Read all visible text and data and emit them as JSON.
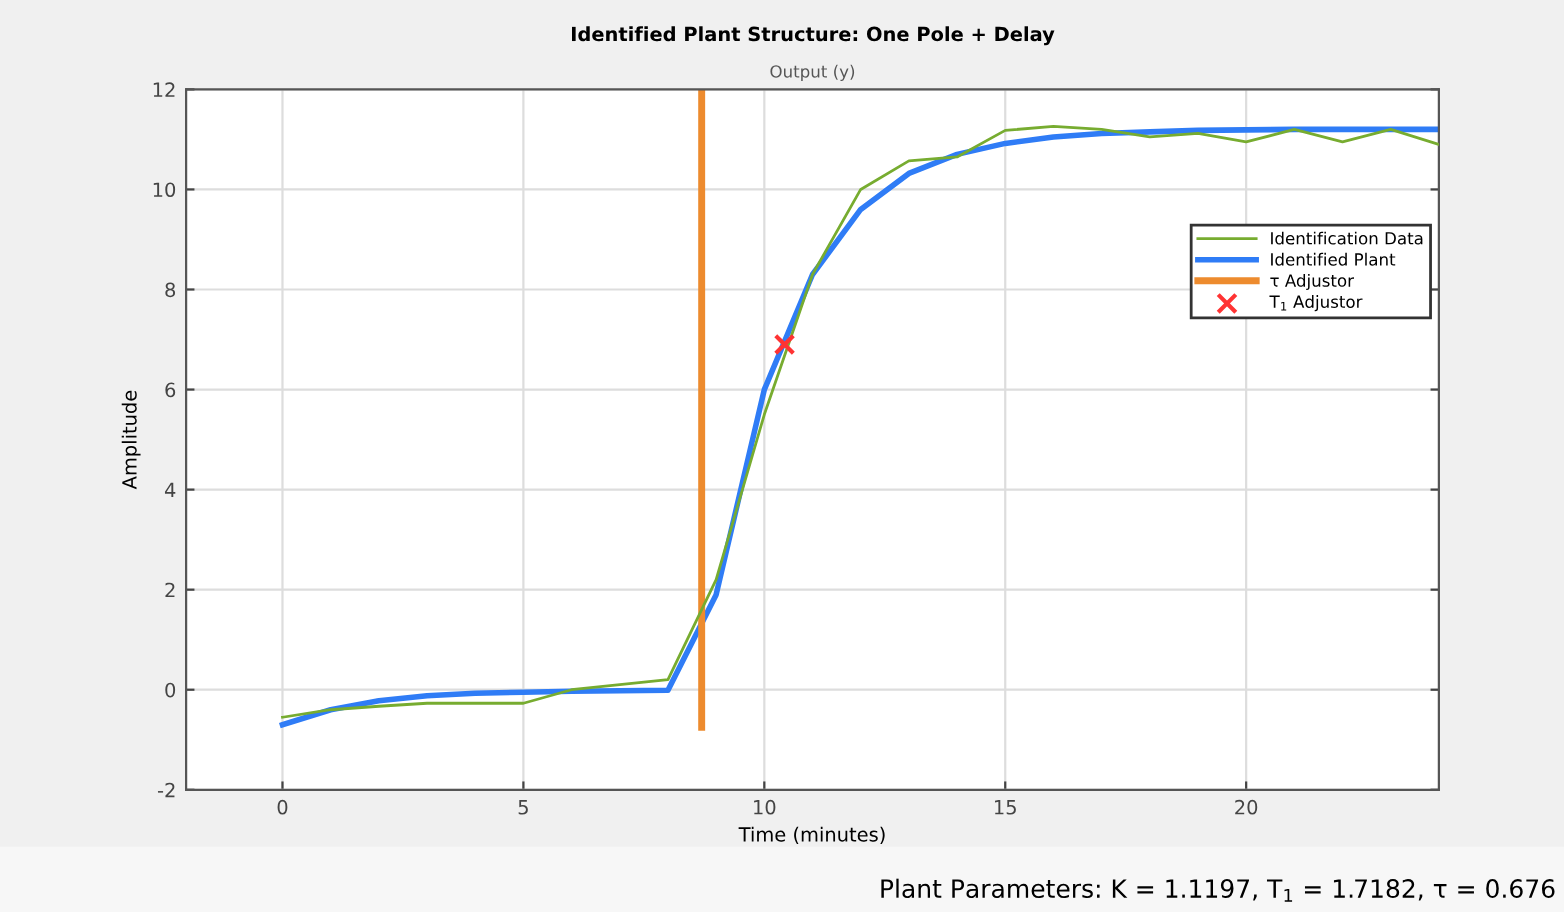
{
  "chart_data": {
    "type": "line",
    "title": "Identified Plant Structure: One Pole + Delay",
    "subtitle": "Output (y)",
    "xlabel": "Time (minutes)",
    "ylabel": "Amplitude",
    "xlim": [
      -2,
      24
    ],
    "ylim": [
      -2,
      12
    ],
    "xticks": [
      0,
      5,
      10,
      15,
      20
    ],
    "yticks": [
      -2,
      0,
      2,
      4,
      6,
      8,
      10,
      12
    ],
    "grid": true,
    "legend": "right",
    "series": [
      {
        "name": "Identification Data",
        "color": "#77ac30",
        "x": [
          0,
          1,
          2,
          3,
          4,
          5,
          6,
          7,
          8,
          9,
          10,
          11,
          12,
          13,
          14,
          15,
          16,
          17,
          18,
          19,
          20,
          21,
          22,
          23,
          24
        ],
        "values": [
          -0.55,
          -0.4,
          -0.33,
          -0.27,
          -0.27,
          -0.27,
          0.0,
          0.1,
          0.2,
          2.2,
          5.5,
          8.3,
          10.0,
          10.57,
          10.65,
          11.18,
          11.26,
          11.2,
          11.05,
          11.12,
          10.95,
          11.2,
          10.95,
          11.2,
          10.9
        ]
      },
      {
        "name": "Identified Plant",
        "color": "#2f7cf6",
        "x": [
          0,
          1,
          2,
          3,
          4,
          5,
          6,
          7,
          8,
          9,
          10,
          11,
          12,
          13,
          14,
          15,
          16,
          17,
          18,
          19,
          20,
          21,
          22,
          23,
          24
        ],
        "values": [
          -0.7,
          -0.4,
          -0.22,
          -0.12,
          -0.07,
          -0.05,
          -0.03,
          -0.02,
          -0.01,
          1.9,
          6.0,
          8.3,
          9.6,
          10.32,
          10.7,
          10.92,
          11.05,
          11.12,
          11.15,
          11.18,
          11.19,
          11.2,
          11.2,
          11.2,
          11.2
        ]
      },
      {
        "name": "τ Adjustor",
        "color": "#ed8b2e",
        "x": [
          8.7,
          8.7
        ],
        "values": [
          -0.75,
          12
        ]
      },
      {
        "name": "T$_{1}$ Adjustor",
        "color": "#ff3333",
        "type": "scatter",
        "marker": "cross",
        "x": [
          10.42
        ],
        "values": [
          6.9
        ]
      }
    ],
    "annotations": [
      "Plant Parameters: K = 1.1197, T$_{1}$ = 1.7182, τ = 0.676"
    ]
  }
}
